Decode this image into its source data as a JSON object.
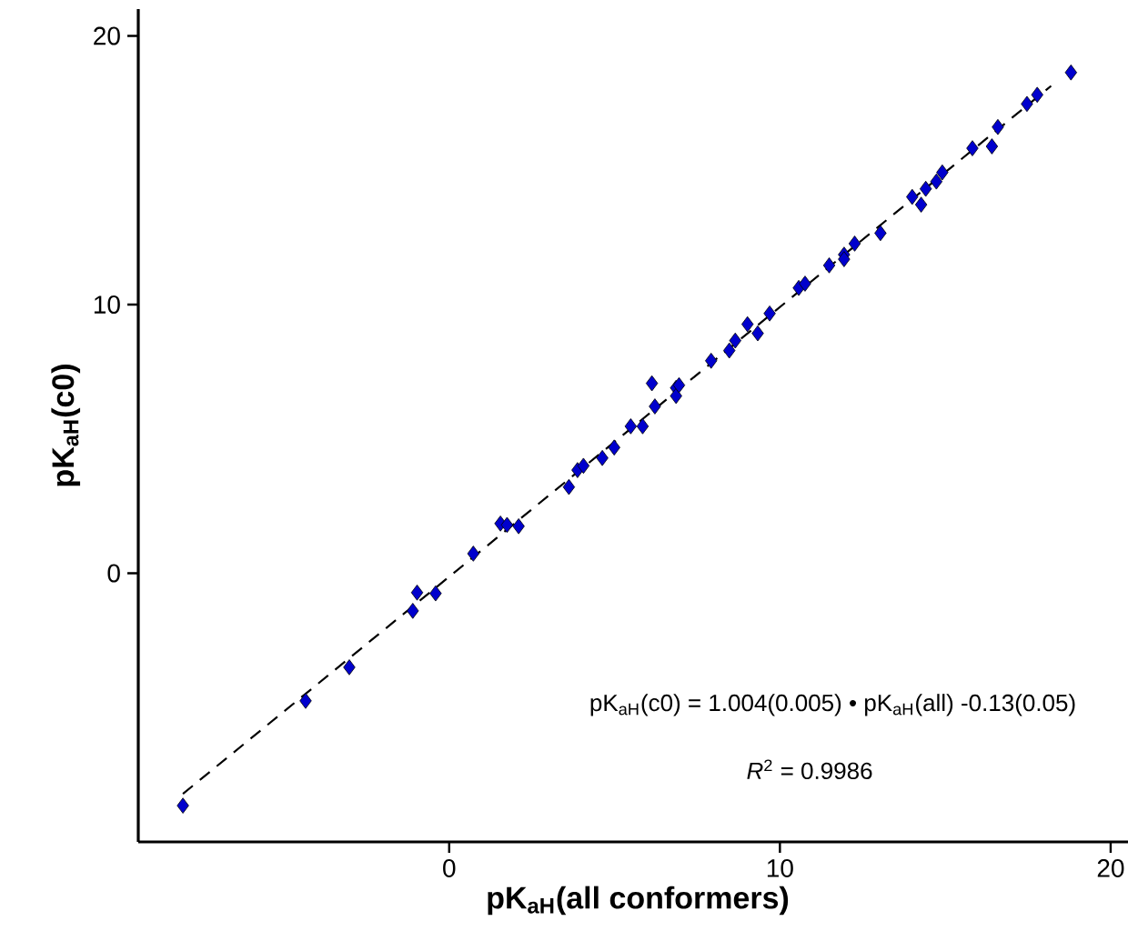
{
  "chart_data": {
    "type": "scatter",
    "xlabel": "pK$_{aH}$(all conformers)",
    "ylabel": "pK$_{aH}$(c0)",
    "xlim": [
      -9.4,
      20.8
    ],
    "ylim": [
      -10,
      21
    ],
    "xticks": [
      0,
      10,
      20
    ],
    "yticks": [
      0,
      10,
      20
    ],
    "grid": false,
    "annotations": [
      "pK$_{aH}$(c0) = 1.004(0.005) • pK$_{aH}$(all) -0.13(0.05)",
      "*R*$^{2}$ = 0.9986"
    ],
    "series": [
      {
        "type": "line",
        "color": "#000000",
        "line_style": "dashed",
        "marker": "none",
        "x": [
          -8.05,
          18.2
        ],
        "values": [
          -8.21,
          18.14
        ]
      },
      {
        "color": "#0000cd",
        "marker": "diamond",
        "x": [
          -8.05,
          -4.34,
          -3.02,
          -1.1,
          -0.97,
          -0.41,
          0.73,
          1.55,
          1.75,
          2.1,
          3.62,
          3.88,
          4.06,
          4.63,
          4.99,
          5.49,
          5.85,
          6.13,
          6.22,
          6.86,
          6.86,
          6.95,
          7.92,
          8.47,
          8.65,
          9.02,
          9.33,
          9.69,
          10.57,
          10.76,
          11.49,
          11.94,
          11.94,
          12.26,
          13.04,
          14.0,
          14.27,
          14.41,
          14.73,
          14.91,
          15.82,
          16.41,
          16.59,
          17.47,
          17.78,
          18.8
        ],
        "values": [
          -8.65,
          -4.75,
          -3.5,
          -1.4,
          -0.72,
          -0.75,
          0.73,
          1.85,
          1.8,
          1.75,
          3.21,
          3.84,
          4.0,
          4.29,
          4.68,
          5.47,
          5.47,
          7.07,
          6.21,
          6.9,
          6.6,
          7.0,
          7.91,
          8.29,
          8.66,
          9.27,
          8.93,
          9.67,
          10.62,
          10.78,
          11.46,
          11.86,
          11.69,
          12.27,
          12.66,
          14.01,
          13.72,
          14.31,
          14.58,
          14.92,
          15.82,
          15.89,
          16.61,
          17.47,
          17.81,
          18.64
        ]
      }
    ]
  }
}
